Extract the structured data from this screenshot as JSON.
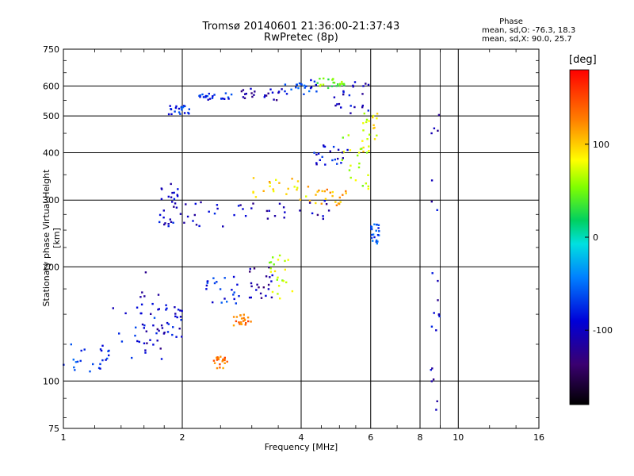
{
  "chart_data": {
    "type": "scatter",
    "title": "Tromsø 20140601 21:36:00-21:37:43",
    "subtitle": "RwPretec (8p)",
    "xlabel": "Frequency [MHz]",
    "ylabel": "Stationary phase Virtual Height [km]",
    "x_scale": "log",
    "y_scale": "log",
    "xlim": [
      1,
      16
    ],
    "ylim": [
      75,
      750
    ],
    "x_ticks": [
      "1",
      "2",
      "4",
      "6",
      "8",
      "10",
      "16"
    ],
    "x_tick_values": [
      1,
      2,
      4,
      6,
      8,
      10,
      16
    ],
    "y_ticks": [
      "750",
      "600",
      "500",
      "400",
      "300",
      "200",
      "100",
      "75"
    ],
    "y_tick_values": [
      750,
      600,
      500,
      400,
      300,
      200,
      100,
      75
    ],
    "grid": true,
    "stats": {
      "heading": "Phase",
      "line_o": "mean, sd,O: -76.3, 18.3",
      "line_x": "mean, sd,X:  90.0, 25.7"
    },
    "colorbar": {
      "label": "[deg]",
      "range": [
        -180,
        180
      ],
      "ticks": [
        "100",
        "0",
        "-100"
      ],
      "tick_values": [
        100,
        0,
        -100
      ]
    },
    "clusters": [
      {
        "x": [
          1.0,
          1.3
        ],
        "y": [
          104,
          128
        ],
        "phase": -70
      },
      {
        "x": [
          1.3,
          1.8
        ],
        "y": [
          105,
          160
        ],
        "phase": -85
      },
      {
        "x": [
          1.5,
          1.85
        ],
        "y": [
          120,
          195
        ],
        "phase": -110
      },
      {
        "x": [
          1.75,
          2.0
        ],
        "y": [
          130,
          160
        ],
        "phase": -95
      },
      {
        "x": [
          1.75,
          1.95
        ],
        "y": [
          255,
          340
        ],
        "phase": -100
      },
      {
        "x": [
          1.8,
          2.8
        ],
        "y": [
          255,
          300
        ],
        "phase": -95
      },
      {
        "x": [
          2.8,
          4.8
        ],
        "y": [
          265,
          300
        ],
        "phase": -110
      },
      {
        "x": [
          3.0,
          4.2
        ],
        "y": [
          300,
          345
        ],
        "phase": 100
      },
      {
        "x": [
          4.2,
          5.2
        ],
        "y": [
          290,
          320
        ],
        "phase": 110
      },
      {
        "x": [
          5.0,
          6.0
        ],
        "y": [
          320,
          450
        ],
        "phase": 60
      },
      {
        "x": [
          5.6,
          6.3
        ],
        "y": [
          400,
          530
        ],
        "phase": 80
      },
      {
        "x": [
          1.85,
          2.1
        ],
        "y": [
          505,
          535
        ],
        "phase": -70
      },
      {
        "x": [
          2.2,
          2.7
        ],
        "y": [
          550,
          575
        ],
        "phase": -80
      },
      {
        "x": [
          2.8,
          3.6
        ],
        "y": [
          550,
          590
        ],
        "phase": -110
      },
      {
        "x": [
          3.6,
          4.4
        ],
        "y": [
          570,
          625
        ],
        "phase": -70
      },
      {
        "x": [
          4.4,
          5.2
        ],
        "y": [
          590,
          630
        ],
        "phase": 50
      },
      {
        "x": [
          4.8,
          6.0
        ],
        "y": [
          480,
          620
        ],
        "phase": -100
      },
      {
        "x": [
          4.3,
          5.3
        ],
        "y": [
          370,
          420
        ],
        "phase": -90
      },
      {
        "x": [
          2.3,
          2.8
        ],
        "y": [
          160,
          190
        ],
        "phase": -75
      },
      {
        "x": [
          2.9,
          3.4
        ],
        "y": [
          165,
          200
        ],
        "phase": -115
      },
      {
        "x": [
          3.3,
          3.8
        ],
        "y": [
          165,
          215
        ],
        "phase": 70
      },
      {
        "x": [
          2.4,
          2.6
        ],
        "y": [
          108,
          116
        ],
        "phase": 130
      },
      {
        "x": [
          2.7,
          3.0
        ],
        "y": [
          140,
          150
        ],
        "phase": 130
      },
      {
        "x": [
          8.5,
          9.0
        ],
        "y": [
          82,
          560
        ],
        "phase": -100
      },
      {
        "x": [
          6.0,
          6.3
        ],
        "y": [
          230,
          260
        ],
        "phase": -60
      }
    ]
  }
}
